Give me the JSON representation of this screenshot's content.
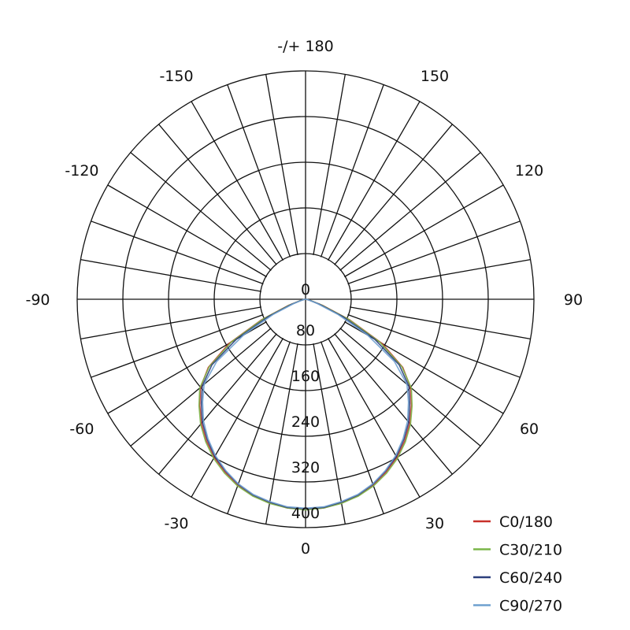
{
  "chart_data": {
    "type": "polar",
    "title": "",
    "angle_ticks": [
      {
        "angle": 180,
        "label": "-/+ 180"
      },
      {
        "angle": 150,
        "label": "150"
      },
      {
        "angle": 120,
        "label": "120"
      },
      {
        "angle": 90,
        "label": "90"
      },
      {
        "angle": 60,
        "label": "60"
      },
      {
        "angle": 30,
        "label": "30"
      },
      {
        "angle": 0,
        "label": "0"
      },
      {
        "angle": -30,
        "label": "-30"
      },
      {
        "angle": -60,
        "label": "-60"
      },
      {
        "angle": -90,
        "label": "-90"
      },
      {
        "angle": -120,
        "label": "-120"
      },
      {
        "angle": -150,
        "label": "-150"
      }
    ],
    "radial_ticks": [
      {
        "value": 0,
        "label": "0"
      },
      {
        "value": 80,
        "label": "80"
      },
      {
        "value": 160,
        "label": "160"
      },
      {
        "value": 240,
        "label": "240"
      },
      {
        "value": 320,
        "label": "320"
      },
      {
        "value": 400,
        "label": "400"
      }
    ],
    "rlim": [
      0,
      400
    ],
    "angle_grid_step": 10,
    "grid": true,
    "legend_position": "bottom-right",
    "angles": [
      -90,
      -85,
      -80,
      -75,
      -70,
      -65,
      -60,
      -55,
      -50,
      -45,
      -40,
      -35,
      -30,
      -25,
      -20,
      -15,
      -10,
      -5,
      0,
      5,
      10,
      15,
      20,
      25,
      30,
      35,
      40,
      45,
      50,
      55,
      60,
      65,
      70,
      75,
      80,
      85,
      90
    ],
    "series": [
      {
        "name": "C0/180",
        "color": "#c8302a",
        "values": [
          0,
          1,
          4,
          10,
          32,
          85,
          155,
          208,
          240,
          262,
          284,
          303,
          320,
          334,
          347,
          356,
          362,
          367,
          368,
          367,
          362,
          356,
          347,
          334,
          320,
          303,
          284,
          262,
          240,
          208,
          155,
          85,
          32,
          10,
          4,
          1,
          0
        ]
      },
      {
        "name": "C30/210",
        "color": "#7ab648",
        "values": [
          0,
          1,
          4,
          10,
          30,
          82,
          150,
          206,
          242,
          264,
          286,
          305,
          322,
          336,
          348,
          357,
          363,
          367,
          369,
          367,
          363,
          357,
          348,
          336,
          322,
          305,
          286,
          264,
          242,
          206,
          150,
          82,
          30,
          10,
          4,
          1,
          0
        ]
      },
      {
        "name": "C60/240",
        "color": "#2c3f7c",
        "values": [
          0,
          1,
          3,
          8,
          26,
          72,
          140,
          200,
          236,
          258,
          281,
          300,
          318,
          332,
          345,
          355,
          361,
          366,
          367,
          366,
          361,
          355,
          345,
          332,
          318,
          300,
          281,
          258,
          236,
          200,
          140,
          72,
          26,
          8,
          3,
          1,
          0
        ]
      },
      {
        "name": "C90/270",
        "color": "#6fa0cf",
        "values": [
          0,
          1,
          3,
          7,
          22,
          62,
          125,
          190,
          232,
          255,
          278,
          298,
          316,
          331,
          344,
          354,
          360,
          365,
          366,
          365,
          360,
          354,
          344,
          331,
          316,
          298,
          278,
          255,
          232,
          190,
          125,
          62,
          22,
          7,
          3,
          1,
          0
        ]
      }
    ]
  }
}
